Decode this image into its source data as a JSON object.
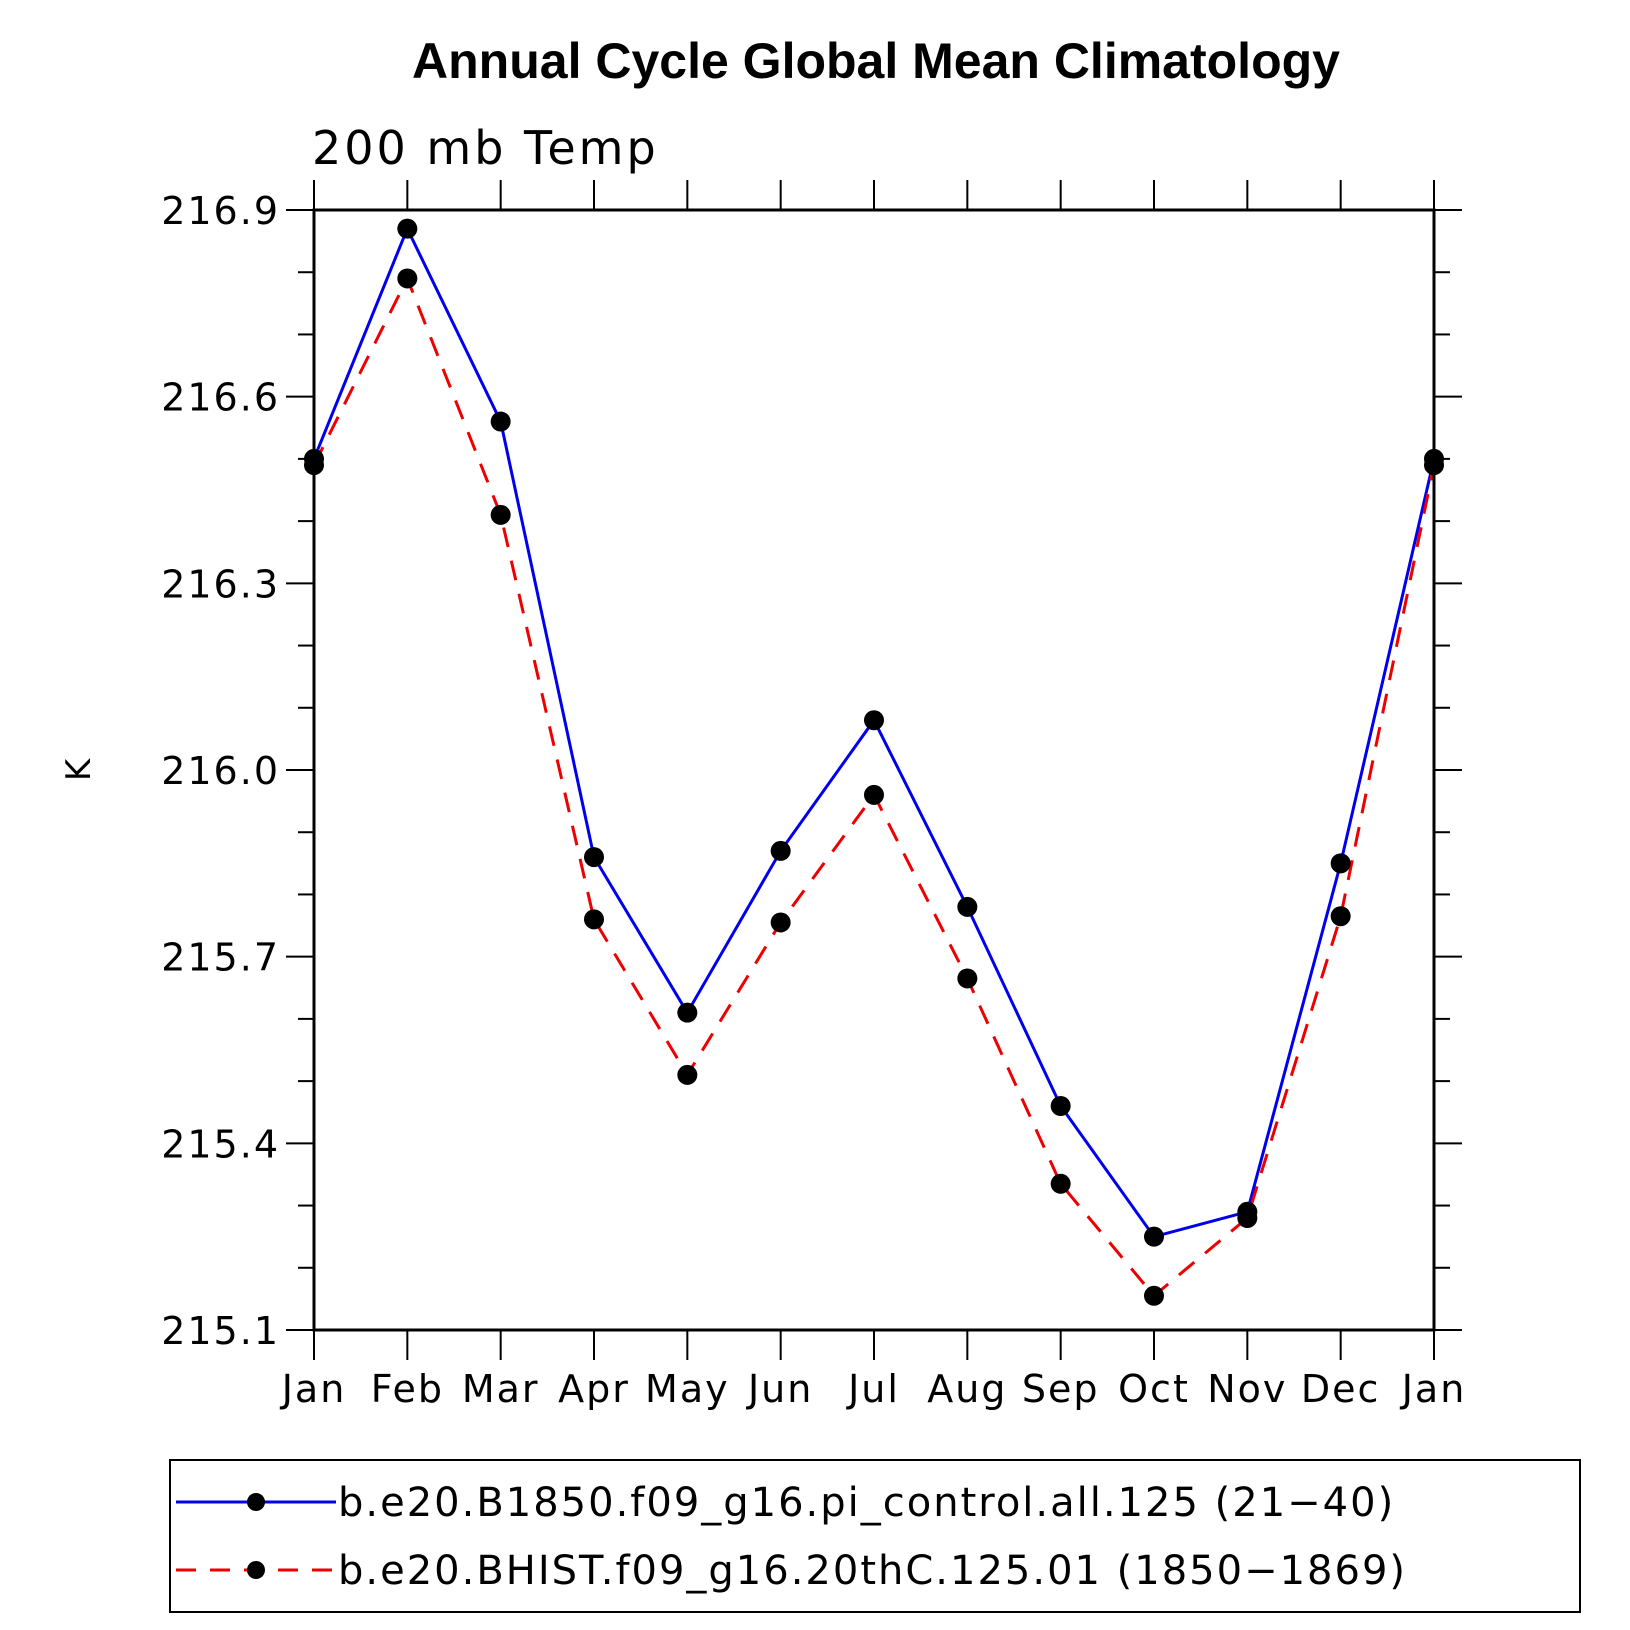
{
  "chart_data": {
    "type": "line",
    "title": "Annual Cycle Global Mean Climatology",
    "subtitle": "200 mb Temp",
    "xlabel": "",
    "ylabel": "K",
    "categories": [
      "Jan",
      "Feb",
      "Mar",
      "Apr",
      "May",
      "Jun",
      "Jul",
      "Aug",
      "Sep",
      "Oct",
      "Nov",
      "Dec",
      "Jan"
    ],
    "ylim": [
      215.1,
      216.9
    ],
    "yticks": [
      "216.9",
      "216.6",
      "216.3",
      "216.0",
      "215.7",
      "215.4",
      "215.1"
    ],
    "grid": false,
    "legend_position": "bottom",
    "series": [
      {
        "name": "b.e20.B1850.f09_g16.pi_control.all.125 (21−40)",
        "color": "#0000ee",
        "style": "solid",
        "marker": "circle",
        "values": [
          216.5,
          216.87,
          216.56,
          215.86,
          215.61,
          215.87,
          216.08,
          215.78,
          215.46,
          215.25,
          215.29,
          215.85,
          216.5
        ]
      },
      {
        "name": "b.e20.BHIST.f09_g16.20thC.125.01 (1850−1869)",
        "color": "#ee0000",
        "style": "dashed",
        "marker": "circle",
        "values": [
          216.49,
          216.79,
          216.41,
          215.76,
          215.51,
          215.755,
          215.96,
          215.665,
          215.335,
          215.155,
          215.28,
          215.765,
          216.49
        ]
      }
    ]
  }
}
